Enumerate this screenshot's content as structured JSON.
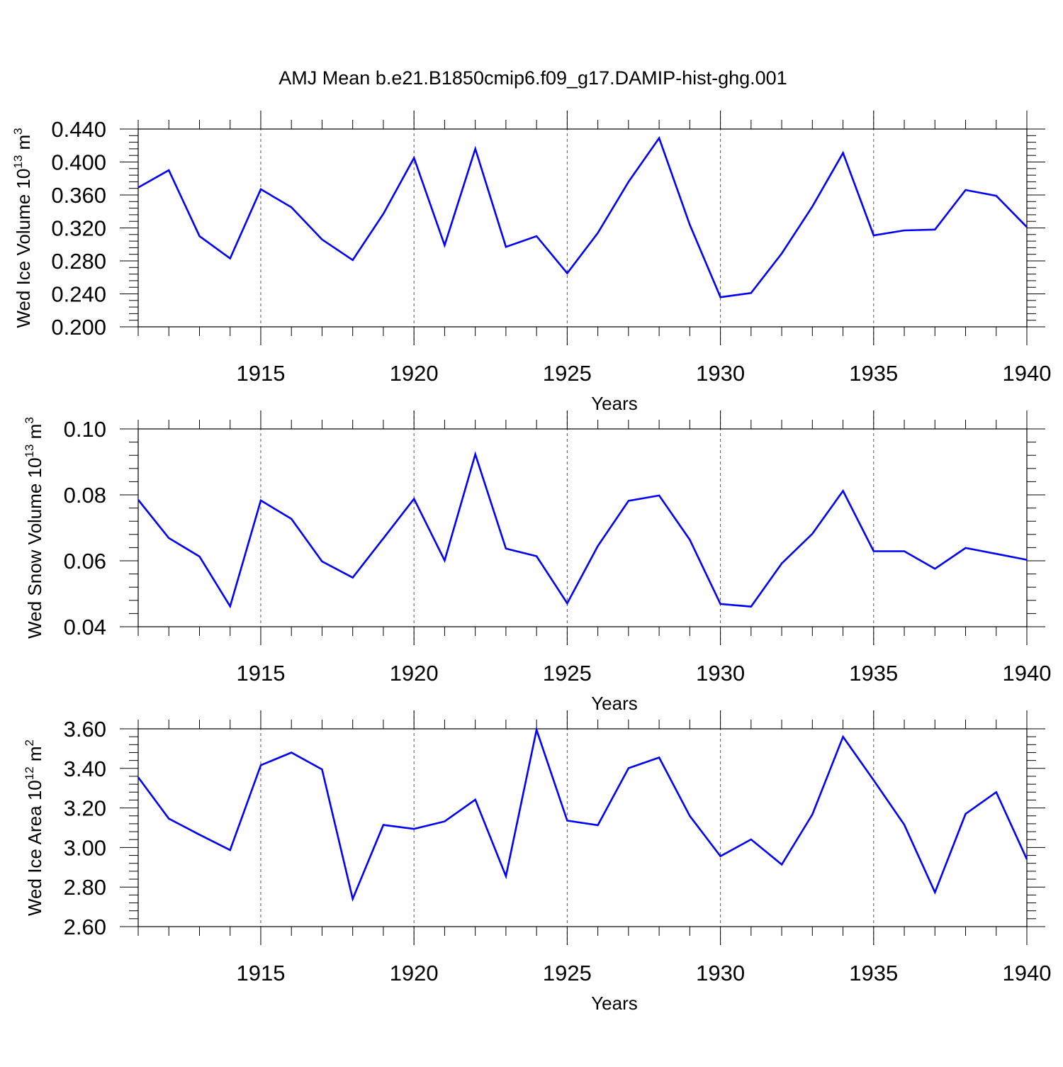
{
  "title": "AMJ Mean b.e21.B1850cmip6.f09_g17.DAMIP-hist-ghg.001",
  "colors": {
    "line": "#0000ff",
    "axis": "#000000",
    "grid": "#555555"
  },
  "chart_data": [
    {
      "type": "line",
      "xlabel": "Years",
      "ylabel": {
        "main": "Wed Ice Volume 10",
        "sup": "13",
        "unit": " m",
        "unit_sup": "3"
      },
      "xlim": [
        1911,
        1940
      ],
      "ylim": [
        0.2,
        0.44
      ],
      "xticks": [
        1915,
        1920,
        1925,
        1930,
        1935,
        1940
      ],
      "xtick_labels": [
        "1915",
        "1920",
        "1925",
        "1930",
        "1935",
        "1940"
      ],
      "yticks": [
        0.2,
        0.24,
        0.28,
        0.32,
        0.36,
        0.4,
        0.44
      ],
      "ytick_labels": [
        "0.200",
        "0.240",
        "0.280",
        "0.320",
        "0.360",
        "0.400",
        "0.440"
      ],
      "grid": "vertical dashed at labeled x ticks",
      "x": [
        1911,
        1912,
        1913,
        1914,
        1915,
        1916,
        1917,
        1918,
        1919,
        1920,
        1921,
        1922,
        1923,
        1924,
        1925,
        1926,
        1927,
        1928,
        1929,
        1930,
        1931,
        1932,
        1933,
        1934,
        1935,
        1936,
        1937,
        1938,
        1939,
        1940
      ],
      "series": [
        {
          "values": [
            0.369,
            0.39,
            0.31,
            0.283,
            0.367,
            0.345,
            0.306,
            0.281,
            0.337,
            0.405,
            0.299,
            0.416,
            0.297,
            0.31,
            0.265,
            0.314,
            0.376,
            0.429,
            0.324,
            0.236,
            0.241,
            0.289,
            0.346,
            0.411,
            0.311,
            0.317,
            0.318,
            0.366,
            0.359,
            0.321
          ]
        }
      ]
    },
    {
      "type": "line",
      "xlabel": "Years",
      "ylabel": {
        "main": "Wed Snow Volume 10",
        "sup": "13",
        "unit": " m",
        "unit_sup": "3"
      },
      "xlim": [
        1911,
        1940
      ],
      "ylim": [
        0.04,
        0.1
      ],
      "xticks": [
        1915,
        1920,
        1925,
        1930,
        1935,
        1940
      ],
      "xtick_labels": [
        "1915",
        "1920",
        "1925",
        "1930",
        "1935",
        "1940"
      ],
      "yticks": [
        0.04,
        0.06,
        0.08,
        0.1
      ],
      "ytick_labels": [
        "0.04",
        "0.06",
        "0.08",
        "0.10"
      ],
      "grid": "vertical dashed at labeled x ticks",
      "x": [
        1911,
        1912,
        1913,
        1914,
        1915,
        1916,
        1917,
        1918,
        1919,
        1920,
        1921,
        1922,
        1923,
        1924,
        1925,
        1926,
        1927,
        1928,
        1929,
        1930,
        1931,
        1932,
        1933,
        1934,
        1935,
        1936,
        1937,
        1938,
        1939,
        1940
      ],
      "series": [
        {
          "values": [
            0.0785,
            0.0669,
            0.0613,
            0.0462,
            0.0783,
            0.0727,
            0.0598,
            0.0549,
            0.0668,
            0.0788,
            0.0601,
            0.0923,
            0.0637,
            0.0614,
            0.0471,
            0.0645,
            0.0782,
            0.0798,
            0.0664,
            0.0469,
            0.0461,
            0.0592,
            0.0682,
            0.0812,
            0.0629,
            0.0629,
            0.0576,
            0.0639,
            0.0621,
            0.0603
          ]
        }
      ]
    },
    {
      "type": "line",
      "xlabel": "Years",
      "ylabel": {
        "main": "Wed Ice Area 10",
        "sup": "12",
        "unit": " m",
        "unit_sup": "2"
      },
      "xlim": [
        1911,
        1940
      ],
      "ylim": [
        2.6,
        3.6
      ],
      "xticks": [
        1915,
        1920,
        1925,
        1930,
        1935,
        1940
      ],
      "xtick_labels": [
        "1915",
        "1920",
        "1925",
        "1930",
        "1935",
        "1940"
      ],
      "yticks": [
        2.6,
        2.8,
        3.0,
        3.2,
        3.4,
        3.6
      ],
      "ytick_labels": [
        "2.60",
        "2.80",
        "3.00",
        "3.20",
        "3.40",
        "3.60"
      ],
      "grid": "vertical dashed at labeled x ticks",
      "x": [
        1911,
        1912,
        1913,
        1914,
        1915,
        1916,
        1917,
        1918,
        1919,
        1920,
        1921,
        1922,
        1923,
        1924,
        1925,
        1926,
        1927,
        1928,
        1929,
        1930,
        1931,
        1932,
        1933,
        1934,
        1935,
        1936,
        1937,
        1938,
        1939,
        1940
      ],
      "series": [
        {
          "values": [
            3.355,
            3.146,
            3.065,
            2.987,
            3.416,
            3.48,
            3.395,
            2.74,
            3.114,
            3.094,
            3.132,
            3.242,
            2.855,
            3.595,
            3.136,
            3.113,
            3.401,
            3.455,
            3.16,
            2.956,
            3.041,
            2.914,
            3.167,
            3.56,
            3.34,
            3.115,
            2.773,
            3.17,
            3.28,
            2.94
          ]
        }
      ]
    }
  ]
}
